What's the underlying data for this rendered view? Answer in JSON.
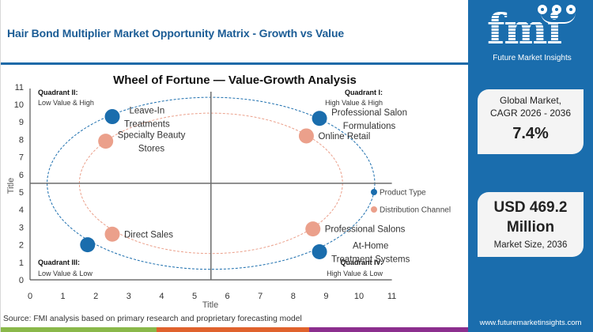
{
  "header": {
    "title": "Hair Bond Multiplier Market Opportunity Matrix - Growth vs Value"
  },
  "footer": {
    "source": "Source: FMI analysis based on primary research and proprietary forecasting model",
    "color_bar": [
      "#8ab84a",
      "#e0622d",
      "#8c2f8e"
    ]
  },
  "sidebar": {
    "logo": {
      "letters": "fmi",
      "tagline": "Future Market Insights",
      "icons": [
        "globe-icon",
        "bulb-icon",
        "head-icon"
      ]
    },
    "cagr_card": {
      "label_line1": "Global Market,",
      "label_line2": "CAGR 2026 - 2036",
      "value": "7.4%"
    },
    "size_card": {
      "value_line1": "USD 469.2",
      "value_line2": "Million",
      "label": "Market Size, 2036"
    },
    "url": "www.futuremarketinsights.com",
    "background": "#1a6dad"
  },
  "chart_data": {
    "type": "scatter",
    "title": "Wheel of Fortune — Value-Growth  Analysis",
    "xlabel": "Title",
    "ylabel": "Title",
    "xlim": [
      0,
      11
    ],
    "ylim": [
      0,
      11
    ],
    "xticks": [
      0,
      1,
      2,
      3,
      4,
      5,
      6,
      7,
      8,
      9,
      10,
      11
    ],
    "yticks": [
      0,
      1,
      2,
      3,
      4,
      5,
      6,
      7,
      8,
      9,
      10,
      11
    ],
    "grid": false,
    "quadrant_dividers": {
      "x": 5.5,
      "y": 5.5
    },
    "quadrants": [
      {
        "id": "II",
        "title": "Quadrant II:",
        "subtitle": "Low Value & High",
        "position": "top-left"
      },
      {
        "id": "I",
        "title": "Quadrant I:",
        "subtitle": "High Value & High",
        "position": "top-right"
      },
      {
        "id": "III",
        "title": "Quadrant III:",
        "subtitle": "Low Value & Low",
        "position": "bottom-left"
      },
      {
        "id": "IV",
        "title": "Quadrant IV:",
        "subtitle": "High Value & Low",
        "position": "bottom-right"
      }
    ],
    "legend": {
      "position": "right",
      "entries": [
        "Product Type",
        "Distribution Channel"
      ]
    },
    "series": [
      {
        "name": "Product Type",
        "color": "#1a6dad",
        "ring": {
          "cx": 5.5,
          "cy": 5.5,
          "rx": 4.98,
          "ry": 4.9
        },
        "points": [
          {
            "label": "Leave-In Treatments",
            "lines": [
              "Leave-In",
              "Treatments"
            ],
            "x": 2.5,
            "y": 9.3
          },
          {
            "label": "Professional Salon Formulations",
            "lines": [
              "Professional Salon",
              "Formulations"
            ],
            "x": 8.8,
            "y": 9.2
          },
          {
            "label": "",
            "lines": [],
            "x": 1.75,
            "y": 2.0
          },
          {
            "label": "At-Home Treatment Systems",
            "lines": [
              "At-Home",
              "Treatment Systems"
            ],
            "x": 8.8,
            "y": 1.6
          }
        ]
      },
      {
        "name": "Distribution Channel",
        "color": "#eba08b",
        "ring": {
          "cx": 5.5,
          "cy": 5.5,
          "rx": 4.0,
          "ry": 4.0
        },
        "points": [
          {
            "label": "Specialty Beauty Stores",
            "lines": [
              "Specialty Beauty",
              "Stores"
            ],
            "x": 2.3,
            "y": 7.9
          },
          {
            "label": "Online Retail",
            "lines": [
              "Online Retail"
            ],
            "x": 8.4,
            "y": 8.2
          },
          {
            "label": "Direct Sales",
            "lines": [
              "Direct Sales"
            ],
            "x": 2.5,
            "y": 2.6
          },
          {
            "label": "Professional Salons",
            "lines": [
              "Professional Salons"
            ],
            "x": 8.6,
            "y": 2.9
          }
        ]
      }
    ]
  }
}
